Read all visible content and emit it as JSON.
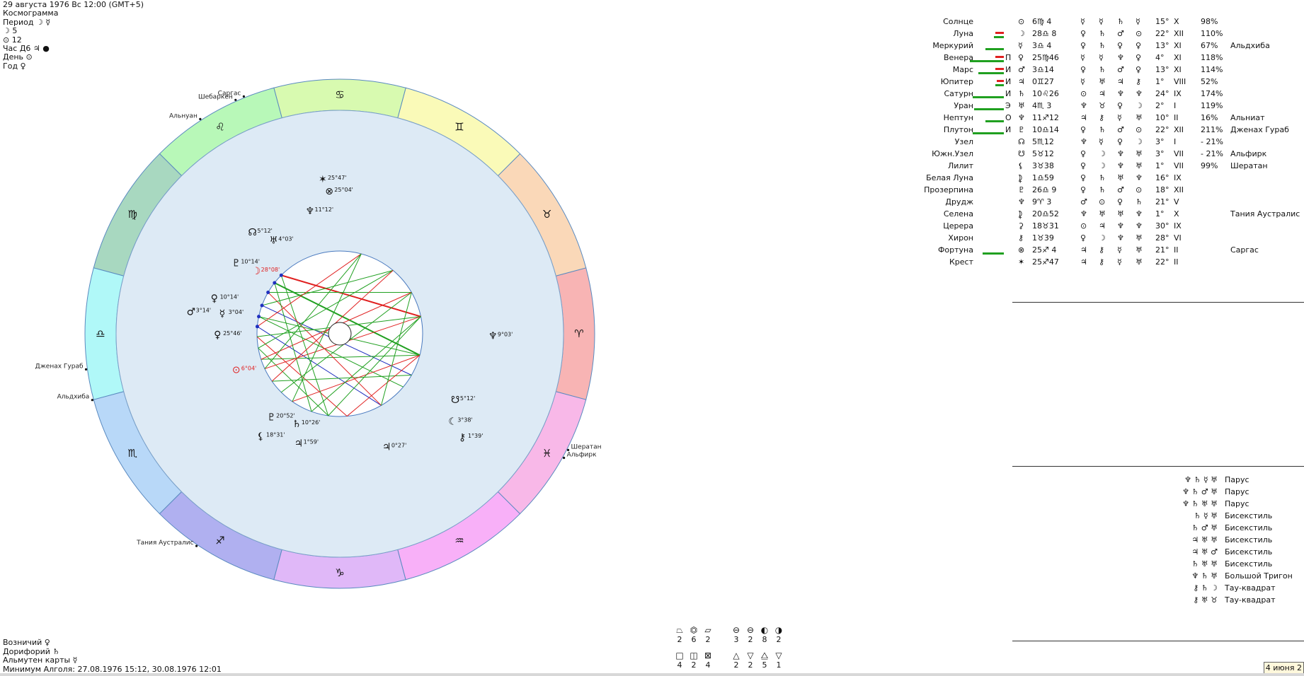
{
  "header": {
    "datetime": "29 августа 1976  Вс  12:00 (GMT+5)",
    "cosmogram": "Космограмма",
    "period": "Период ☽ ☿",
    "moon_count": "☽  5",
    "sun_count": "⊙  12",
    "hour": "Час Д6  ♃  ●",
    "day": "День ⊙",
    "year": "Год ♀"
  },
  "footer": {
    "charioteer": "Возничий  ♀",
    "doryphory": "Дорифорий  ♄",
    "almuten": "Альмутен карты  ☿",
    "algol_min": "Минимум Алголя: 27.08.1976 15:12,  30.08.1976 12:01"
  },
  "zodiac_signs": [
    "♈",
    "♉",
    "♊",
    "♋",
    "♌",
    "♍",
    "♎",
    "♏",
    "♐",
    "♑",
    "♒",
    "♓"
  ],
  "zodiac_colors": [
    "#f8b4b4",
    "#fad8b8",
    "#fafab8",
    "#d8fab0",
    "#b8f8b8",
    "#a8d8c0",
    "#b0f8f8",
    "#b8d8f8",
    "#b0b0f0",
    "#e0b8f8",
    "#f8b0f8",
    "#f8b8e8"
  ],
  "colors": {
    "inner_circle": "#ddeaf5",
    "red": "#e02020",
    "green": "#20a020",
    "blue": "#2030c0"
  },
  "stars_outer": [
    {
      "name": "Альнуан",
      "deg": 123
    },
    {
      "name": "Шебаркен",
      "deg": 114
    },
    {
      "name": "Саргас",
      "deg": 112
    },
    {
      "name": "Дженах Гураб",
      "deg": 188
    },
    {
      "name": "Альдхиба",
      "deg": 195
    },
    {
      "name": "Тания Аустралис",
      "deg": 236
    },
    {
      "name": "Шератан",
      "deg": -27
    },
    {
      "name": "Альфирк",
      "deg": -29
    }
  ],
  "chart_planets": [
    {
      "glyph": "✶",
      "label": "25°47'",
      "a": 98,
      "r": 216,
      "color": "#111"
    },
    {
      "glyph": "⊗",
      "label": "25°04'",
      "a": 96,
      "r": 198,
      "color": "#111"
    },
    {
      "glyph": "♆",
      "label": "11°12'",
      "a": 106,
      "r": 176,
      "color": "#111"
    },
    {
      "glyph": "☊",
      "label": "5°12'",
      "a": 133,
      "r": 190,
      "color": "#111"
    },
    {
      "glyph": "♅",
      "label": "4°03'",
      "a": 128,
      "r": 162,
      "color": "#111"
    },
    {
      "glyph": "♇",
      "label": "10°14'",
      "a": 148,
      "r": 180,
      "color": "#111"
    },
    {
      "glyph": "☽",
      "label": "28°08'",
      "a": 146,
      "r": 150,
      "color": "#e02020"
    },
    {
      "glyph": "♀",
      "label": "10°14'",
      "a": 166,
      "r": 188,
      "color": "#111"
    },
    {
      "glyph": "♂",
      "label": "3°14'",
      "a": 173,
      "r": 218,
      "color": "#111"
    },
    {
      "glyph": "☿",
      "label": "3°04'",
      "a": 172,
      "r": 172,
      "color": "#111"
    },
    {
      "glyph": "♀",
      "label": "25°46'",
      "a": 182,
      "r": 178,
      "color": "#111"
    },
    {
      "glyph": "⊙",
      "label": "6°04'",
      "a": 200,
      "r": 162,
      "color": "#e02020"
    },
    {
      "glyph": "♇",
      "label": "20°52'",
      "a": 230,
      "r": 160,
      "color": "#111"
    },
    {
      "glyph": "♄",
      "label": "10°26'",
      "a": 243,
      "r": 148,
      "color": "#111"
    },
    {
      "glyph": "⚸",
      "label": "18°31'",
      "a": 232,
      "r": 190,
      "color": "#111"
    },
    {
      "glyph": "♃",
      "label": "1°59'",
      "a": 248,
      "r": 172,
      "color": "#111"
    },
    {
      "glyph": "♃",
      "label": "0°27'",
      "a": 290,
      "r": 175,
      "color": "#111"
    },
    {
      "glyph": "☋",
      "label": "5°12'",
      "a": 328,
      "r": 185,
      "color": "#111"
    },
    {
      "glyph": "☾",
      "label": "3°38'",
      "a": 320,
      "r": 200,
      "color": "#111"
    },
    {
      "glyph": "⚷",
      "label": "1°39'",
      "a": 318,
      "r": 226,
      "color": "#111"
    },
    {
      "glyph": "♆",
      "label": "9°03'",
      "a": 358,
      "r": 210,
      "color": "#111"
    }
  ],
  "planet_rows": [
    {
      "name": "Солнце",
      "sign": "",
      "g": "⊙",
      "pos": "6♍ 4",
      "r1": "☿",
      "r2": "☿",
      "r3": "♄",
      "r4": "☿",
      "deg": "15°",
      "house": "X",
      "pct": "98%",
      "star": "",
      "bg": 0,
      "br": 0
    },
    {
      "name": "Луна",
      "sign": "",
      "g": "☽",
      "pos": "28♎ 8",
      "r1": "♀",
      "r2": "♄",
      "r3": "♂",
      "r4": "⊙",
      "deg": "22°",
      "house": "XII",
      "pct": "110%",
      "star": "",
      "bg": 14,
      "br": 12
    },
    {
      "name": "Меркурий",
      "sign": "",
      "g": "☿",
      "pos": "3♎ 4",
      "r1": "♀",
      "r2": "♄",
      "r3": "♀",
      "r4": "♀",
      "deg": "13°",
      "house": "XI",
      "pct": "67%",
      "star": "Альдхиба",
      "bg": 26,
      "br": 0
    },
    {
      "name": "Венера",
      "sign": "П",
      "g": "♀",
      "pos": "25♍46",
      "r1": "☿",
      "r2": "☿",
      "r3": "♆",
      "r4": "♀",
      "deg": "4°",
      "house": "XI",
      "pct": "118%",
      "star": "",
      "bg": 48,
      "br": 12
    },
    {
      "name": "Марс",
      "sign": "И",
      "g": "♂",
      "pos": "3♎14",
      "r1": "♀",
      "r2": "♄",
      "r3": "♂",
      "r4": "♀",
      "deg": "13°",
      "house": "XI",
      "pct": "114%",
      "star": "",
      "bg": 36,
      "br": 12
    },
    {
      "name": "Юпитер",
      "sign": "И",
      "g": "♃",
      "pos": "0♊27",
      "r1": "☿",
      "r2": "♅",
      "r3": "♃",
      "r4": "⚷",
      "deg": "1°",
      "house": "VIII",
      "pct": "52%",
      "star": "",
      "bg": 12,
      "br": 10
    },
    {
      "name": "Сатурн",
      "sign": "И",
      "g": "♄",
      "pos": "10♌26",
      "r1": "⊙",
      "r2": "♃",
      "r3": "♆",
      "r4": "♆",
      "deg": "24°",
      "house": "IX",
      "pct": "174%",
      "star": "",
      "bg": 44,
      "br": 0
    },
    {
      "name": "Уран",
      "sign": "Э",
      "g": "♅",
      "pos": "4♏ 3",
      "r1": "♆",
      "r2": "♉",
      "r3": "♀",
      "r4": "☽",
      "deg": "2°",
      "house": "I",
      "pct": "119%",
      "star": "",
      "bg": 42,
      "br": 0
    },
    {
      "name": "Нептун",
      "sign": "О",
      "g": "♆",
      "pos": "11♐12",
      "r1": "♃",
      "r2": "⚷",
      "r3": "☿",
      "r4": "♅",
      "deg": "10°",
      "house": "II",
      "pct": "16%",
      "star": "Альниат",
      "bg": 26,
      "br": 0
    },
    {
      "name": "Плутон",
      "sign": "И",
      "g": "♇",
      "pos": "10♎14",
      "r1": "♀",
      "r2": "♄",
      "r3": "♂",
      "r4": "⊙",
      "deg": "22°",
      "house": "XII",
      "pct": "211%",
      "star": "Дженах Гураб",
      "bg": 44,
      "br": 0
    },
    {
      "name": "Узел",
      "sign": "",
      "g": "☊",
      "pos": "5♏12",
      "r1": "♆",
      "r2": "☿",
      "r3": "♀",
      "r4": "☽",
      "deg": "3°",
      "house": "I",
      "pct": "- 21%",
      "star": "",
      "bg": 0,
      "br": 0
    },
    {
      "name": "Южн.Узел",
      "sign": "",
      "g": "☋",
      "pos": "5♉12",
      "r1": "♀",
      "r2": "☽",
      "r3": "♆",
      "r4": "♅",
      "deg": "3°",
      "house": "VII",
      "pct": "- 21%",
      "star": "Альфирк",
      "bg": 0,
      "br": 0
    },
    {
      "name": "Лилит",
      "sign": "",
      "g": "⚸",
      "pos": "3♉38",
      "r1": "♀",
      "r2": "☽",
      "r3": "♆",
      "r4": "♅",
      "deg": "1°",
      "house": "VII",
      "pct": "99%",
      "star": "Шератан",
      "bg": 0,
      "br": 0
    },
    {
      "name": "Белая Луна",
      "sign": "",
      "g": "⯝",
      "pos": "1♎59",
      "r1": "♀",
      "r2": "♄",
      "r3": "♅",
      "r4": "♆",
      "deg": "16°",
      "house": "IX",
      "pct": "",
      "star": "",
      "bg": 0,
      "br": 0
    },
    {
      "name": "Прозерпина",
      "sign": "",
      "g": "♇",
      "pos": "26♎ 9",
      "r1": "♀",
      "r2": "♄",
      "r3": "♂",
      "r4": "⊙",
      "deg": "18°",
      "house": "XII",
      "pct": "",
      "star": "",
      "bg": 0,
      "br": 0
    },
    {
      "name": "Друдж",
      "sign": "",
      "g": "♆",
      "pos": "9♈ 3",
      "r1": "♂",
      "r2": "⊙",
      "r3": "♀",
      "r4": "♄",
      "deg": "21°",
      "house": "V",
      "pct": "",
      "star": "",
      "bg": 0,
      "br": 0
    },
    {
      "name": "Селена",
      "sign": "",
      "g": "⯝",
      "pos": "20♎52",
      "r1": "♆",
      "r2": "♅",
      "r3": "♅",
      "r4": "♆",
      "deg": "1°",
      "house": "X",
      "pct": "",
      "star": "Тания Аустралис",
      "bg": 0,
      "br": 0
    },
    {
      "name": "Церера",
      "sign": "",
      "g": "⚳",
      "pos": "18♉31",
      "r1": "⊙",
      "r2": "♃",
      "r3": "♆",
      "r4": "♆",
      "deg": "30°",
      "house": "IX",
      "pct": "",
      "star": "",
      "bg": 0,
      "br": 0
    },
    {
      "name": "Хирон",
      "sign": "",
      "g": "⚷",
      "pos": "1♉39",
      "r1": "♀",
      "r2": "☽",
      "r3": "♆",
      "r4": "♅",
      "deg": "28°",
      "house": "VI",
      "pct": "",
      "star": "",
      "bg": 0,
      "br": 0
    },
    {
      "name": "Фортуна",
      "sign": "",
      "g": "⊗",
      "pos": "25♐ 4",
      "r1": "♃",
      "r2": "⚷",
      "r3": "☿",
      "r4": "♅",
      "deg": "21°",
      "house": "II",
      "pct": "",
      "star": "Саргас",
      "bg": 30,
      "br": 0
    },
    {
      "name": "Крест",
      "sign": "",
      "g": "✶",
      "pos": "25♐47",
      "r1": "♃",
      "r2": "⚷",
      "r3": "☿",
      "r4": "♅",
      "deg": "22°",
      "house": "II",
      "pct": "",
      "star": "",
      "bg": 0,
      "br": 0
    }
  ],
  "aspects": [
    {
      "g": "♆ ♄ ☿ ♅",
      "name": "Парус"
    },
    {
      "g": "♆ ♄ ♂ ♅",
      "name": "Парус"
    },
    {
      "g": "♆ ♄ ♅ ♅",
      "name": "Парус"
    },
    {
      "g": "♄ ☿ ♅",
      "name": "Бисекстиль"
    },
    {
      "g": "♄ ♂ ♅",
      "name": "Бисекстиль"
    },
    {
      "g": "♃ ♅ ♅",
      "name": "Бисекстиль"
    },
    {
      "g": "♃ ♅ ♂",
      "name": "Бисекстиль"
    },
    {
      "g": "♄ ♅ ♅",
      "name": "Бисекстиль"
    },
    {
      "g": "♆ ♄ ♅",
      "name": "Большой Тригон"
    },
    {
      "g": "⚷ ♄ ☽",
      "name": "Тау-квадрат"
    },
    {
      "g": "⚷ ♅ ♉",
      "name": "Тау-квадрат"
    }
  ],
  "stats": [
    {
      "sym": "⏢",
      "cnt": "2"
    },
    {
      "sym": "⏣",
      "cnt": "6"
    },
    {
      "sym": "⏥",
      "cnt": "2"
    },
    {
      "sym": "⊖",
      "cnt": "3"
    },
    {
      "sym": "⊖",
      "cnt": "2"
    },
    {
      "sym": "◐",
      "cnt": "8"
    },
    {
      "sym": "◑",
      "cnt": "2"
    },
    {
      "sym": "□",
      "cnt": "4"
    },
    {
      "sym": "◫",
      "cnt": "2"
    },
    {
      "sym": "⊠",
      "cnt": "4"
    },
    {
      "sym": "△",
      "cnt": "2"
    },
    {
      "sym": "▽",
      "cnt": "2"
    },
    {
      "sym": "⧋",
      "cnt": "5"
    },
    {
      "sym": "▽",
      "cnt": "1"
    }
  ],
  "date_badge": "4 июня 2"
}
